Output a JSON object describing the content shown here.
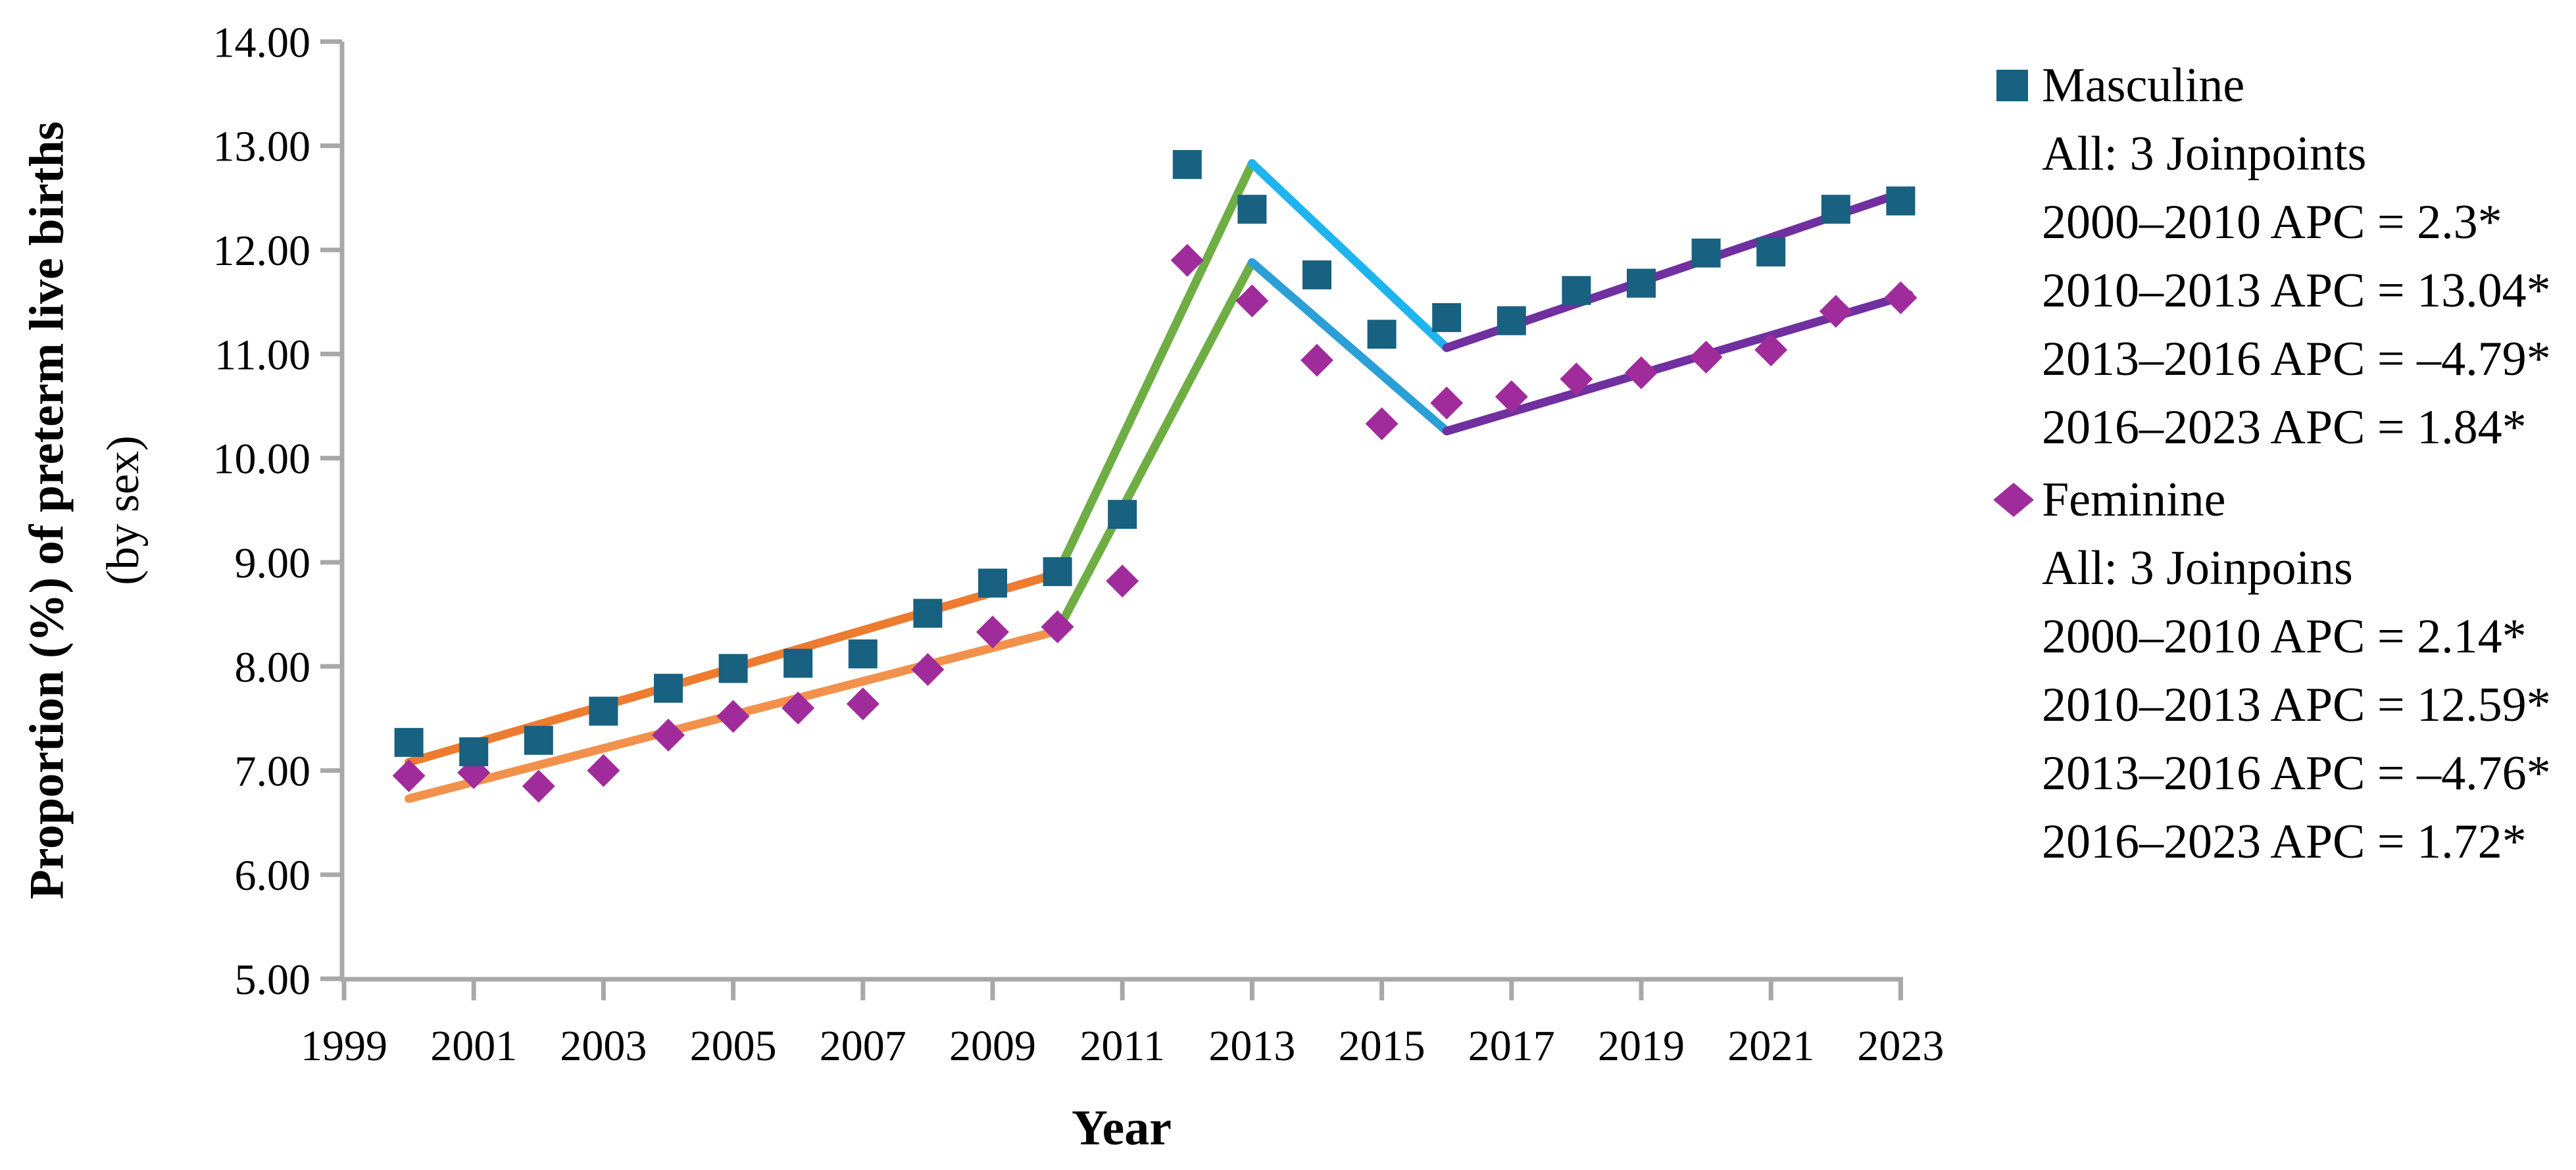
{
  "chart_data": {
    "type": "scatter",
    "title": "",
    "xlabel": "Year",
    "ylabel_main": "Proportion (%) of preterm live births",
    "ylabel_sub": "(by sex)",
    "xlim": [
      1999,
      2023.3
    ],
    "ylim": [
      5,
      14
    ],
    "grid": false,
    "legend_position": "right",
    "axis_color": "#A8A8A8",
    "x_ticks": [
      1999,
      2001,
      2003,
      2005,
      2007,
      2009,
      2011,
      2013,
      2015,
      2017,
      2019,
      2021,
      2023
    ],
    "x_tick_labels": [
      "1999",
      "2001",
      "2003",
      "2005",
      "2007",
      "2009",
      "2011",
      "2013",
      "2015",
      "2017",
      "2019",
      "2021",
      "2023"
    ],
    "y_ticks": [
      5,
      6,
      7,
      8,
      9,
      10,
      11,
      12,
      13,
      14
    ],
    "y_tick_labels": [
      "5.00",
      "6.00",
      "7.00",
      "8.00",
      "9.00",
      "10.00",
      "11.00",
      "12.00",
      "13.00",
      "14.00"
    ],
    "years": [
      2000,
      2001,
      2002,
      2003,
      2004,
      2005,
      2006,
      2007,
      2008,
      2009,
      2010,
      2011,
      2012,
      2013,
      2014,
      2015,
      2016,
      2017,
      2018,
      2019,
      2020,
      2021,
      2022,
      2023
    ],
    "series": [
      {
        "name": "Masculine",
        "marker": "square",
        "color": "#186180",
        "values": [
          7.27,
          7.18,
          7.29,
          7.57,
          7.79,
          7.98,
          8.03,
          8.12,
          8.51,
          8.8,
          8.91,
          9.46,
          12.82,
          12.39,
          11.76,
          11.19,
          11.35,
          11.32,
          11.61,
          11.68,
          11.97,
          11.98,
          12.39,
          12.47
        ]
      },
      {
        "name": "Feminine",
        "marker": "diamond",
        "color": "#A02C9C",
        "values": [
          6.95,
          6.98,
          6.85,
          7.0,
          7.34,
          7.52,
          7.6,
          7.64,
          7.97,
          8.33,
          8.38,
          8.82,
          11.9,
          11.51,
          10.94,
          10.33,
          10.53,
          10.59,
          10.76,
          10.82,
          10.97,
          11.04,
          11.41,
          11.54
        ]
      }
    ],
    "fitted_segments": [
      {
        "series": "Masculine",
        "period": "2000–2010",
        "apc": "2.3*",
        "color": "#ED7B30",
        "points": [
          [
            2000,
            7.08
          ],
          [
            2010,
            8.89
          ]
        ]
      },
      {
        "series": "Masculine",
        "period": "2010–2013",
        "apc": "13.04*",
        "color": "#6FAD45",
        "points": [
          [
            2010,
            8.89
          ],
          [
            2013,
            12.83
          ]
        ]
      },
      {
        "series": "Masculine",
        "period": "2013–2016",
        "apc": "–4.79*",
        "color": "#1FB4EE",
        "points": [
          [
            2013,
            12.83
          ],
          [
            2016,
            11.06
          ]
        ]
      },
      {
        "series": "Masculine",
        "period": "2016–2023",
        "apc": "1.84*",
        "color": "#7030A0",
        "points": [
          [
            2016,
            11.06
          ],
          [
            2023.13,
            12.57
          ]
        ]
      },
      {
        "series": "Feminine",
        "period": "2000–2010",
        "apc": "2.14*",
        "color": "#F2914B",
        "points": [
          [
            2000,
            6.73
          ],
          [
            2010,
            8.34
          ]
        ]
      },
      {
        "series": "Feminine",
        "period": "2010–2013",
        "apc": "12.59*",
        "color": "#6FAD45",
        "points": [
          [
            2010,
            8.34
          ],
          [
            2013,
            11.88
          ]
        ]
      },
      {
        "series": "Feminine",
        "period": "2013–2016",
        "apc": "–4.76*",
        "color": "#2B9FD6",
        "points": [
          [
            2013,
            11.88
          ],
          [
            2016,
            10.26
          ]
        ]
      },
      {
        "series": "Feminine",
        "period": "2016–2023",
        "apc": "1.72*",
        "color": "#7030A0",
        "points": [
          [
            2016,
            10.26
          ],
          [
            2023.13,
            11.57
          ]
        ]
      }
    ],
    "legend": {
      "masculine": {
        "label": "Masculine",
        "marker_color": "#186180",
        "lines": [
          "All: 3 Joinpoints",
          "2000–2010 APC = 2.3*",
          "2010–2013 APC = 13.04*",
          "2013–2016 APC = –4.79*",
          "2016–2023 APC = 1.84*"
        ]
      },
      "feminine": {
        "label": "Feminine",
        "marker_color": "#A02C9C",
        "lines": [
          "All: 3 Joinpoins",
          "2000–2010 APC = 2.14*",
          "2010–2013 APC = 12.59*",
          "2013–2016 APC = –4.76*",
          "2016–2023 APC = 1.72*"
        ]
      }
    }
  }
}
